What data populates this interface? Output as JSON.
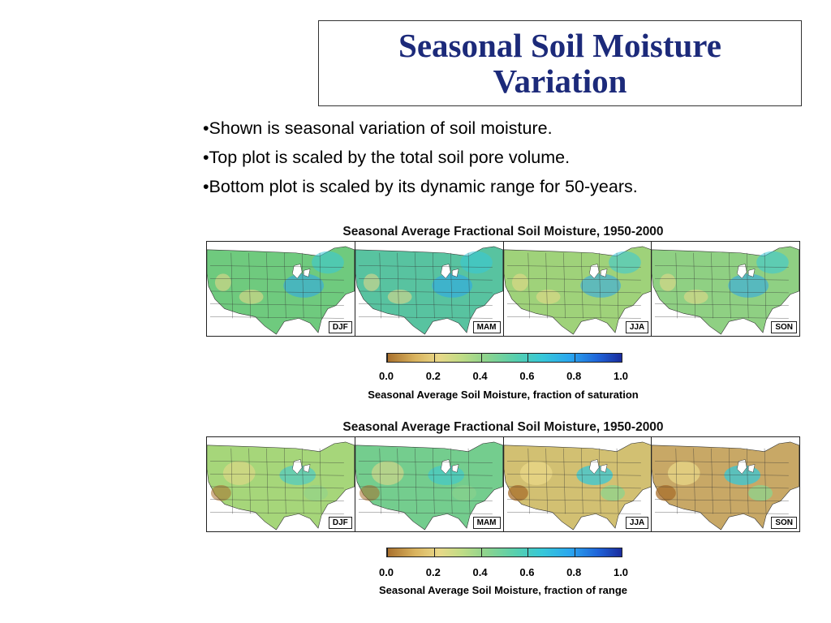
{
  "slide": {
    "title_line1": "Seasonal Soil Moisture",
    "title_line2": "Variation",
    "bullets": [
      "•Shown is seasonal variation of soil moisture.",
      "•Top plot is scaled by the total soil pore volume.",
      "•Bottom plot is scaled by its dynamic range for 50-years."
    ]
  },
  "figures": [
    {
      "title": "Seasonal Average Fractional Soil Moisture, 1950-2000",
      "seasons": [
        "DJF",
        "MAM",
        "JJA",
        "SON"
      ],
      "colorbar": {
        "ticks": [
          "0.0",
          "0.2",
          "0.4",
          "0.6",
          "0.8",
          "1.0"
        ],
        "caption": "Seasonal Average Soil Moisture, fraction of saturation",
        "colors": [
          "#a86f2c",
          "#e9d888",
          "#8ed48d",
          "#37c8d8",
          "#2aa6ef",
          "#1a2c9d"
        ]
      },
      "panel_fill": [
        "#6fca7e",
        "#58c3a0",
        "#9fd27a",
        "#8fd083"
      ]
    },
    {
      "title": "Seasonal Average Fractional Soil Moisture, 1950-2000",
      "seasons": [
        "DJF",
        "MAM",
        "JJA",
        "SON"
      ],
      "colorbar": {
        "ticks": [
          "0.0",
          "0.2",
          "0.4",
          "0.6",
          "0.8",
          "1.0"
        ],
        "caption": "Seasonal Average Soil Moisture, fraction of range",
        "colors": [
          "#a86f2c",
          "#e9d888",
          "#8ed48d",
          "#37c8d8",
          "#2aa6ef",
          "#1a2c9d"
        ]
      },
      "panel_fill": [
        "#a6d67a",
        "#74cd8e",
        "#d2c072",
        "#c8a866"
      ]
    }
  ]
}
